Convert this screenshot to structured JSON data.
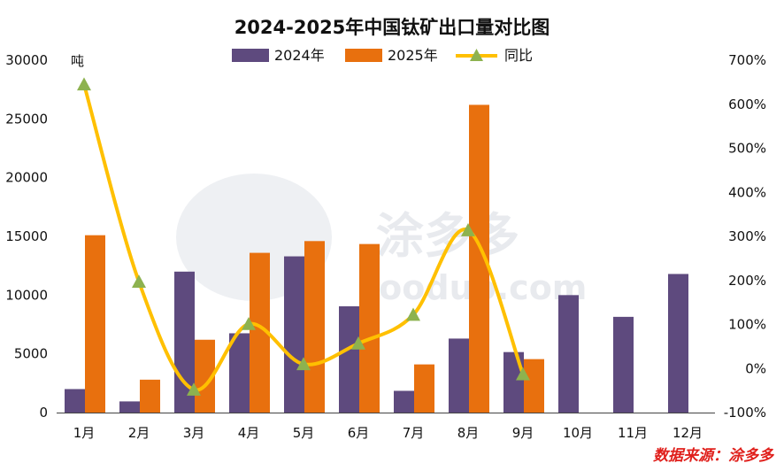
{
  "chart_data": {
    "type": "bar",
    "title": "2024-2025年中国钛矿出口量对比图",
    "categories": [
      "1月",
      "2月",
      "3月",
      "4月",
      "5月",
      "6月",
      "7月",
      "8月",
      "9月",
      "10月",
      "11月",
      "12月"
    ],
    "series": [
      {
        "name": "2024年",
        "type": "bar",
        "axis": "left",
        "color": "#5e4a7e",
        "values": [
          2000,
          950,
          12000,
          6750,
          13300,
          9050,
          1850,
          6300,
          5150,
          10000,
          8150,
          11800
        ]
      },
      {
        "name": "2025年",
        "type": "bar",
        "axis": "left",
        "color": "#e8700e",
        "values": [
          15100,
          2800,
          6200,
          13600,
          14600,
          14350,
          4100,
          26200,
          4550,
          null,
          null,
          null
        ]
      },
      {
        "name": "同比",
        "type": "line",
        "axis": "right",
        "color": "#ffc000",
        "marker_color": "#8db24f",
        "values": [
          645,
          197,
          -48,
          101,
          10,
          57,
          122,
          314,
          -13,
          null,
          null,
          null
        ]
      }
    ],
    "y_left": {
      "min": 0,
      "max": 30000,
      "ticks": [
        "0",
        "5000",
        "10000",
        "15000",
        "20000",
        "25000",
        "30000"
      ],
      "unit": "吨"
    },
    "y_right": {
      "min": -100,
      "max": 700,
      "ticks": [
        "-100%",
        "0%",
        "100%",
        "200%",
        "300%",
        "400%",
        "500%",
        "600%",
        "700%"
      ]
    },
    "legend_position": "top"
  },
  "watermark": {
    "brand": "涂多多",
    "url": "tooduo.com"
  },
  "source_label": "数据来源：涂多多"
}
